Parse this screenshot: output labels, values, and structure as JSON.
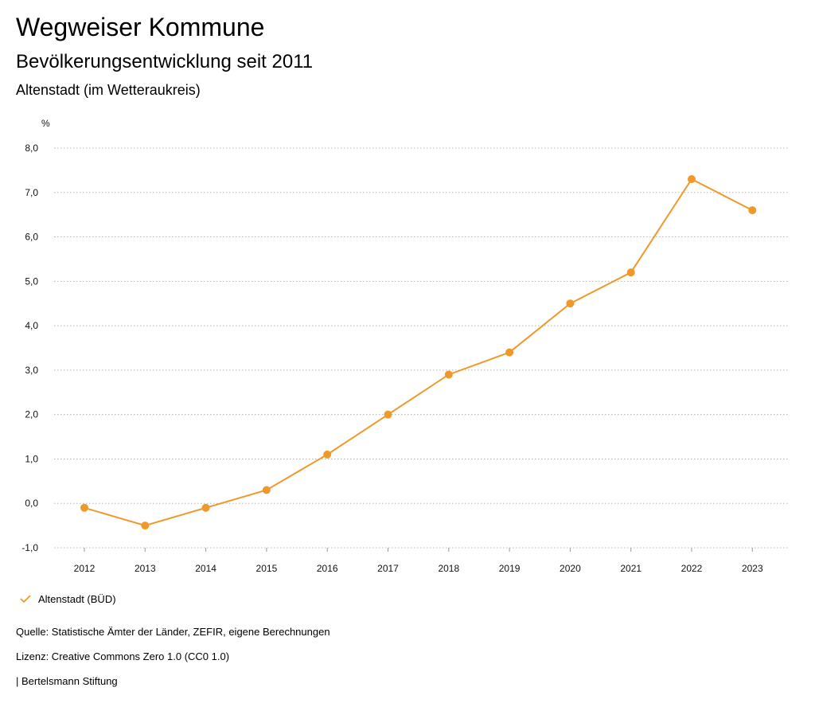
{
  "header": {
    "title": "Wegweiser Kommune",
    "subtitle": "Bevölkerungsentwicklung seit 2011",
    "place": "Altenstadt (im Wetteraukreis)"
  },
  "chart_data": {
    "type": "line",
    "unit_label": "%",
    "x": [
      "2012",
      "2013",
      "2014",
      "2015",
      "2016",
      "2017",
      "2018",
      "2019",
      "2020",
      "2021",
      "2022",
      "2023"
    ],
    "series": [
      {
        "name": "Altenstadt (BÜD)",
        "color": "#f0992b",
        "values": [
          -0.1,
          -0.5,
          -0.1,
          0.3,
          1.1,
          2.0,
          2.9,
          3.4,
          4.5,
          5.2,
          7.3,
          6.6
        ]
      }
    ],
    "ylim": [
      -1.0,
      8.0
    ],
    "y_ticks": [
      "-1,0",
      "0,0",
      "1,0",
      "2,0",
      "3,0",
      "4,0",
      "5,0",
      "6,0",
      "7,0",
      "8,0"
    ],
    "grid": "horizontal-dotted",
    "legend_position": "bottom-left"
  },
  "legend": {
    "label": "Altenstadt (BÜD)"
  },
  "footer": {
    "source": "Quelle: Statistische Ämter der Länder, ZEFIR, eigene Berechnungen",
    "license": "Lizenz: Creative Commons Zero 1.0 (CC0 1.0)",
    "publisher": "| Bertelsmann Stiftung"
  }
}
